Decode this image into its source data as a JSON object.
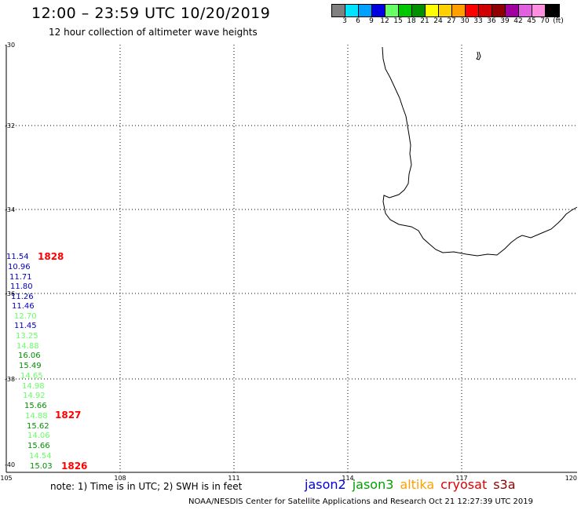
{
  "header": {
    "title": "12:00 – 23:59 UTC 10/20/2019",
    "subtitle": "12 hour collection of altimeter wave heights"
  },
  "scale": {
    "colors": [
      "#808080",
      "#00e5ff",
      "#00a0ff",
      "#0000e0",
      "#66ff66",
      "#00c800",
      "#009000",
      "#ffff00",
      "#ffd000",
      "#ffa000",
      "#ff0000",
      "#d00000",
      "#900000",
      "#a000a0",
      "#e060e0",
      "#ff90e0",
      "#000000"
    ],
    "labels": [
      "3",
      "6",
      "9",
      "12",
      "15",
      "18",
      "21",
      "24",
      "27",
      "30",
      "33",
      "36",
      "39",
      "42",
      "45",
      "70",
      "(ft)"
    ]
  },
  "map": {
    "lat_labels": [
      "-30",
      "-32",
      "-34",
      "-36",
      "-38",
      "-40"
    ],
    "lon_labels": [
      "105",
      "108",
      "111",
      "114",
      "117",
      "120"
    ],
    "observations": [
      {
        "value": "11.54",
        "color": "#0000c0"
      },
      {
        "value": "10.96",
        "color": "#0000c0"
      },
      {
        "value": "11.71",
        "color": "#0000c0"
      },
      {
        "value": "11.80",
        "color": "#0000c0"
      },
      {
        "value": "11.26",
        "color": "#0000c0"
      },
      {
        "value": "11.46",
        "color": "#0000c0"
      },
      {
        "value": "12.70",
        "color": "#66ff66"
      },
      {
        "value": "11.45",
        "color": "#0000c0"
      },
      {
        "value": "13.25",
        "color": "#66ff66"
      },
      {
        "value": "14.88",
        "color": "#66ff66"
      },
      {
        "value": "16.06",
        "color": "#009000"
      },
      {
        "value": "15.49",
        "color": "#009000"
      },
      {
        "value": "14.65",
        "color": "#66ff66"
      },
      {
        "value": "14.98",
        "color": "#66ff66"
      },
      {
        "value": "14.92",
        "color": "#66ff66"
      },
      {
        "value": "15.66",
        "color": "#009000"
      },
      {
        "value": "14.88",
        "color": "#66ff66"
      },
      {
        "value": "15.62",
        "color": "#009000"
      },
      {
        "value": "14.06",
        "color": "#66ff66"
      },
      {
        "value": "15.66",
        "color": "#009000"
      },
      {
        "value": "14.54",
        "color": "#66ff66"
      },
      {
        "value": "15.03",
        "color": "#009000"
      }
    ],
    "time_labels": [
      "1828",
      "1827",
      "1826"
    ]
  },
  "note": "note: 1) Time is in UTC; 2) SWH is in feet",
  "legend": [
    {
      "name": "jason2",
      "color": "#0000e0"
    },
    {
      "name": "jason3",
      "color": "#00a000"
    },
    {
      "name": "altika",
      "color": "#ffa000"
    },
    {
      "name": "cryosat",
      "color": "#e00000"
    },
    {
      "name": "s3a",
      "color": "#900000"
    }
  ],
  "footer": "NOAA/NESDIS Center for Satellite Applications and Research    Oct 21 12:27:39 UTC 2019"
}
